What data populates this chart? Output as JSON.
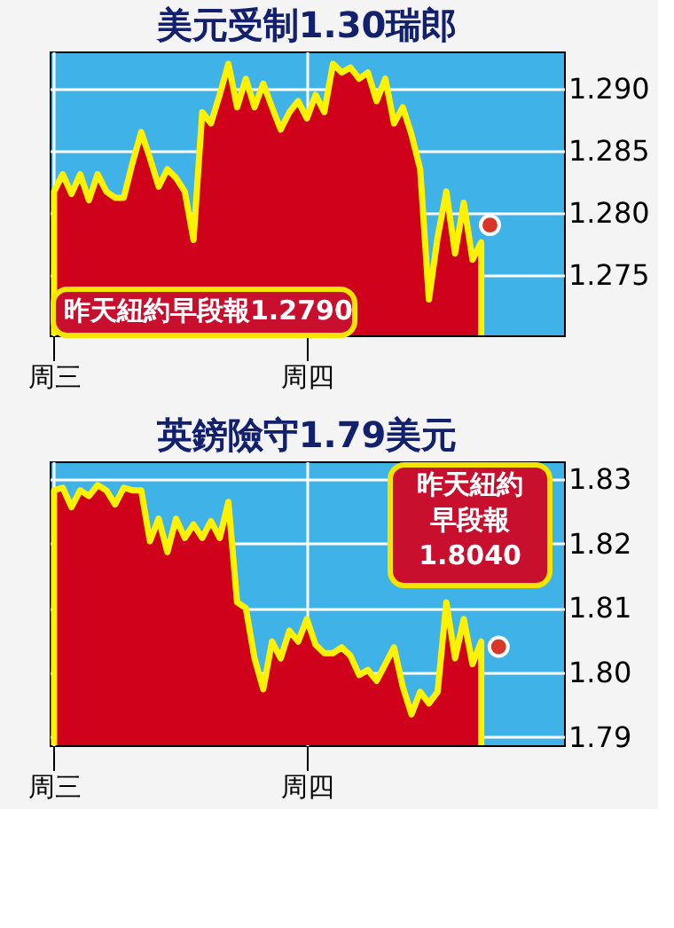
{
  "chart_data": [
    {
      "type": "area",
      "title": "美元受制1.30瑞郎",
      "categories": [
        "周三",
        null,
        null,
        null,
        null,
        null,
        null,
        null,
        null,
        null,
        null,
        null,
        null,
        null,
        null,
        null,
        null,
        null,
        null,
        null,
        null,
        null,
        null,
        null,
        null,
        null,
        null,
        null,
        null,
        "周四",
        null,
        null,
        null,
        null,
        null,
        null,
        null,
        null,
        null,
        null,
        null,
        null,
        null,
        null,
        null,
        null,
        null,
        null,
        null,
        null,
        null,
        null,
        null,
        null,
        null,
        null,
        null,
        null,
        null
      ],
      "ylim": [
        1.2701,
        1.293
      ],
      "yticks": [
        {
          "value": 1.275,
          "label": "1.275"
        },
        {
          "value": 1.28,
          "label": "1.280"
        },
        {
          "value": 1.285,
          "label": "1.285"
        },
        {
          "value": 1.29,
          "label": "1.290"
        }
      ],
      "grid": true,
      "series": [
        {
          "color": "#d0021b",
          "values": [
            1.2817,
            1.2831,
            1.2815,
            1.2831,
            1.281,
            1.2831,
            1.2817,
            1.2812,
            1.2812,
            1.284,
            1.2865,
            1.2844,
            1.2821,
            1.2835,
            1.2828,
            1.2817,
            1.2778,
            1.2881,
            1.2872,
            1.2895,
            1.292,
            1.2885,
            1.2908,
            1.2885,
            1.2904,
            1.2885,
            1.2867,
            1.2881,
            1.289,
            1.2876,
            1.2895,
            1.2881,
            1.292,
            1.2913,
            1.2917,
            1.2908,
            1.2913,
            1.289,
            1.2908,
            1.2872,
            1.2885,
            1.2863,
            1.2835,
            1.273,
            1.278,
            1.2817,
            1.2767,
            1.2808,
            1.2762,
            1.2776,
            null,
            null,
            null,
            null,
            null,
            null,
            null,
            null,
            null
          ]
        },
        {
          "type": "scatter",
          "color": "#d9362a",
          "marker": "circle",
          "values": [
            null,
            null,
            null,
            null,
            null,
            null,
            null,
            null,
            null,
            null,
            null,
            null,
            null,
            null,
            null,
            null,
            null,
            null,
            null,
            null,
            null,
            null,
            null,
            null,
            null,
            null,
            null,
            null,
            null,
            null,
            null,
            null,
            null,
            null,
            null,
            null,
            null,
            null,
            null,
            null,
            null,
            null,
            null,
            null,
            null,
            null,
            null,
            null,
            null,
            null,
            1.279,
            null,
            null,
            null,
            null,
            null,
            null,
            null,
            null
          ]
        }
      ],
      "annotations": [
        "昨天紐約早段報1.2790"
      ]
    },
    {
      "type": "area",
      "title": "英鎊險守1.79美元",
      "categories": [
        "周三",
        null,
        null,
        null,
        null,
        null,
        null,
        null,
        null,
        null,
        null,
        null,
        null,
        null,
        null,
        null,
        null,
        null,
        null,
        null,
        null,
        null,
        null,
        null,
        null,
        null,
        null,
        null,
        null,
        "周四",
        null,
        null,
        null,
        null,
        null,
        null,
        null,
        null,
        null,
        null,
        null,
        null,
        null,
        null,
        null,
        null,
        null,
        null,
        null,
        null,
        null,
        null,
        null,
        null,
        null,
        null,
        null,
        null,
        null
      ],
      "ylim": [
        1.7887,
        1.8328
      ],
      "yticks": [
        1.79,
        {
          "value": 1.8,
          "label": "1.80"
        },
        1.81,
        1.82,
        1.83
      ],
      "grid": true,
      "series": [
        {
          "color": "#d0021b",
          "values": [
            1.8283,
            1.8287,
            1.8257,
            1.8283,
            1.8274,
            1.8291,
            1.8283,
            1.8261,
            1.8287,
            1.8283,
            1.8283,
            1.8204,
            1.8239,
            1.8187,
            1.8239,
            1.8209,
            1.823,
            1.8209,
            1.8235,
            1.8209,
            1.8265,
            1.8109,
            1.81,
            1.8022,
            1.7974,
            1.8048,
            1.8022,
            1.8065,
            1.8048,
            1.8083,
            1.8043,
            1.803,
            1.803,
            1.8039,
            1.8026,
            1.7996,
            1.8004,
            1.7987,
            1.8013,
            1.8039,
            1.7978,
            1.7935,
            1.797,
            1.7952,
            1.797,
            1.8109,
            1.8022,
            1.8083,
            1.8013,
            1.8048,
            null,
            null,
            null,
            null,
            null,
            null,
            null,
            null,
            null
          ]
        },
        {
          "type": "scatter",
          "color": "#d9362a",
          "marker": "circle",
          "values": [
            null,
            null,
            null,
            null,
            null,
            null,
            null,
            null,
            null,
            null,
            null,
            null,
            null,
            null,
            null,
            null,
            null,
            null,
            null,
            null,
            null,
            null,
            null,
            null,
            null,
            null,
            null,
            null,
            null,
            null,
            null,
            null,
            null,
            null,
            null,
            null,
            null,
            null,
            null,
            null,
            null,
            null,
            null,
            null,
            null,
            null,
            null,
            null,
            null,
            null,
            null,
            1.804,
            null,
            null,
            null,
            null,
            null,
            null,
            null
          ]
        }
      ],
      "annotations": [
        "昨天紐約早段報1.8040"
      ]
    }
  ]
}
